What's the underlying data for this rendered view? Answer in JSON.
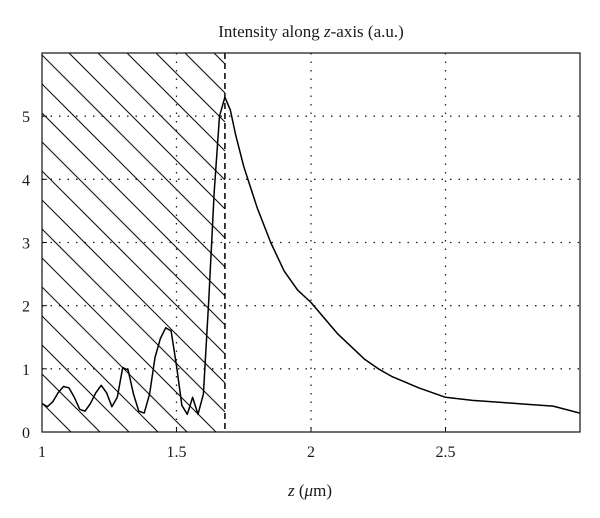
{
  "chart_data": {
    "type": "line",
    "title": "Intensity along z-axis (a.u.)",
    "title_parts": [
      "Intensity along ",
      "z",
      "-axis (a.u.)"
    ],
    "xlabel": "z (μm)",
    "xlabel_parts": [
      "z",
      " (",
      "μ",
      "m)"
    ],
    "ylabel": "",
    "xlim": [
      1.0,
      3.0
    ],
    "ylim": [
      0,
      6.0
    ],
    "x_ticks": [
      1,
      1.5,
      2,
      2.5
    ],
    "x_tick_labels": [
      "1",
      "1.5",
      "2",
      "2.5"
    ],
    "y_ticks": [
      0,
      1,
      2,
      3,
      4,
      5
    ],
    "y_tick_labels": [
      "0",
      "1",
      "2",
      "3",
      "4",
      "5"
    ],
    "grid": "dotted",
    "hatched_region": [
      1.0,
      1.68
    ],
    "boundary_x": 1.68,
    "series": [
      {
        "x": [
          1.0,
          1.02,
          1.04,
          1.06,
          1.08,
          1.1,
          1.12,
          1.14,
          1.16,
          1.18,
          1.2,
          1.22,
          1.24,
          1.26,
          1.28,
          1.3,
          1.32,
          1.34,
          1.36,
          1.38,
          1.4,
          1.42,
          1.44,
          1.46,
          1.48,
          1.5,
          1.52,
          1.54,
          1.56,
          1.58,
          1.6,
          1.62,
          1.64,
          1.66,
          1.68,
          1.7,
          1.72,
          1.75,
          1.8,
          1.85,
          1.9,
          1.95,
          2.0,
          2.1,
          2.2,
          2.25,
          2.3,
          2.4,
          2.5,
          2.6,
          2.7,
          2.8,
          2.9,
          3.0
        ],
        "y": [
          0.45,
          0.4,
          0.48,
          0.62,
          0.72,
          0.7,
          0.55,
          0.36,
          0.33,
          0.45,
          0.62,
          0.74,
          0.62,
          0.4,
          0.55,
          1.02,
          0.98,
          0.6,
          0.33,
          0.3,
          0.6,
          1.18,
          1.48,
          1.65,
          1.6,
          1.05,
          0.42,
          0.28,
          0.55,
          0.28,
          0.6,
          2.1,
          3.8,
          5.0,
          5.3,
          5.1,
          4.7,
          4.2,
          3.55,
          3.0,
          2.55,
          2.25,
          2.05,
          1.55,
          1.15,
          1.0,
          0.88,
          0.7,
          0.55,
          0.5,
          0.47,
          0.44,
          0.41,
          0.3
        ]
      }
    ]
  }
}
